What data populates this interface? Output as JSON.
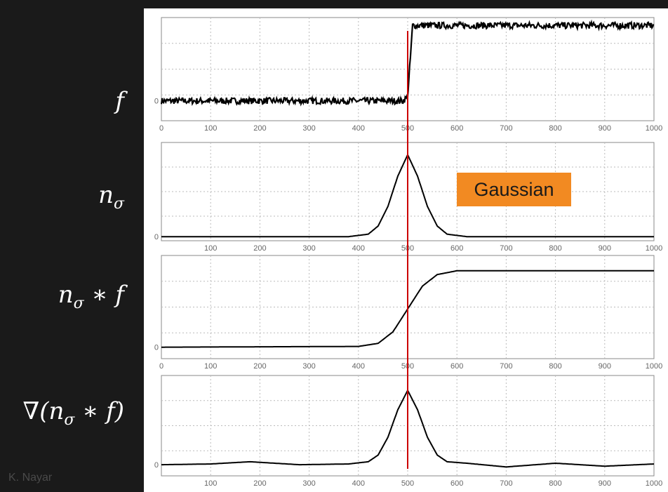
{
  "labels": {
    "f": "f",
    "n_sigma": "n",
    "n_sigma_sub": "σ",
    "conv_pre": "n",
    "conv_sub": "σ",
    "conv_post": " ∗ f",
    "grad_pre": "∇(n",
    "grad_sub": "σ",
    "grad_post": " ∗ f)"
  },
  "annotation": "Gaussian",
  "credit": "K. Nayar",
  "colors": {
    "marker_line": "#cc0000",
    "annotation_bg": "#f28a22",
    "curve": "#000000"
  },
  "chart_data": [
    {
      "type": "line",
      "name": "f",
      "xlim": [
        0,
        1000
      ],
      "xticks": [
        "0",
        "100",
        "200",
        "300",
        "400",
        "500",
        "600",
        "700",
        "800",
        "900",
        "1000"
      ],
      "yticks": [
        "0"
      ],
      "ylim": [
        -0.25,
        1.05
      ],
      "x": [
        0,
        490,
        500,
        510,
        1000
      ],
      "values": [
        0,
        0,
        0.05,
        0.95,
        0.95
      ],
      "noise": 0.04,
      "grid": true
    },
    {
      "type": "line",
      "name": "n_sigma",
      "xlim": [
        0,
        1000
      ],
      "xticks": [
        "",
        "100",
        "200",
        "300",
        "400",
        "500",
        "600",
        "700",
        "800",
        "900",
        "1000"
      ],
      "yticks": [
        "0"
      ],
      "ylim": [
        -0.05,
        1.15
      ],
      "x": [
        0,
        380,
        420,
        440,
        460,
        480,
        500,
        520,
        540,
        560,
        580,
        620,
        1000
      ],
      "values": [
        0,
        0,
        0.03,
        0.13,
        0.37,
        0.74,
        1.0,
        0.74,
        0.37,
        0.13,
        0.03,
        0,
        0
      ],
      "grid": true
    },
    {
      "type": "line",
      "name": "n_sigma * f",
      "xlim": [
        0,
        1000
      ],
      "xticks": [
        "0",
        "100",
        "200",
        "300",
        "400",
        "500",
        "600",
        "700",
        "800",
        "900",
        "1000"
      ],
      "yticks": [
        "0"
      ],
      "ylim": [
        -0.15,
        1.2
      ],
      "x": [
        0,
        400,
        440,
        470,
        500,
        530,
        560,
        600,
        1000
      ],
      "values": [
        0,
        0.01,
        0.05,
        0.2,
        0.5,
        0.8,
        0.95,
        1.0,
        1.0
      ],
      "grid": true
    },
    {
      "type": "line",
      "name": "grad(n_sigma * f)",
      "xlim": [
        0,
        1000
      ],
      "xticks": [
        "",
        "100",
        "200",
        "300",
        "400",
        "500",
        "600",
        "700",
        "800",
        "900",
        "1000"
      ],
      "yticks": [
        "0"
      ],
      "ylim": [
        -0.15,
        1.2
      ],
      "x": [
        0,
        100,
        180,
        280,
        380,
        420,
        440,
        460,
        480,
        500,
        520,
        540,
        560,
        580,
        620,
        700,
        800,
        900,
        1000
      ],
      "values": [
        0,
        0.01,
        0.04,
        0.0,
        0.01,
        0.04,
        0.13,
        0.37,
        0.74,
        1.0,
        0.74,
        0.37,
        0.13,
        0.04,
        0.02,
        -0.03,
        0.02,
        -0.02,
        0.01
      ],
      "grid": true
    }
  ],
  "marker_x": 500
}
